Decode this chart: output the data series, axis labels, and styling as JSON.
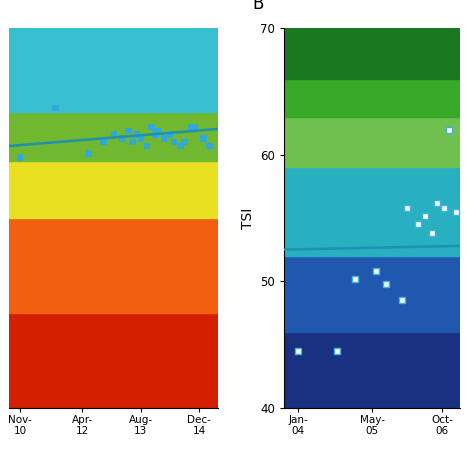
{
  "panel_A": {
    "bg_bands": [
      {
        "ymin": 0,
        "ymax": 25,
        "color": "#d42000"
      },
      {
        "ymin": 25,
        "ymax": 50,
        "color": "#f06010"
      },
      {
        "ymin": 50,
        "ymax": 65,
        "color": "#e8e020"
      },
      {
        "ymin": 65,
        "ymax": 78,
        "color": "#70b830"
      },
      {
        "ymin": 78,
        "ymax": 100,
        "color": "#38c0d0"
      }
    ],
    "scatter_x": [
      0.05,
      0.22,
      0.38,
      0.45,
      0.5,
      0.54,
      0.57,
      0.59,
      0.61,
      0.63,
      0.66,
      0.68,
      0.7,
      0.71,
      0.74,
      0.77,
      0.79,
      0.82,
      0.84,
      0.87,
      0.89,
      0.93,
      0.96
    ],
    "scatter_y": [
      66,
      79,
      67,
      70,
      72,
      71,
      73,
      70,
      72,
      71,
      69,
      74,
      72,
      73,
      71,
      72,
      70,
      69,
      70,
      74,
      74,
      71,
      69
    ],
    "line_x": [
      0.0,
      1.0
    ],
    "line_y": [
      69.0,
      73.5
    ],
    "line_color": "#2090b0",
    "scatter_color": "#30a8d8",
    "xlim": [
      0,
      1
    ],
    "ylim": [
      0,
      100
    ],
    "xticks": [
      0.05,
      0.35,
      0.63,
      0.91
    ],
    "xticklabels": [
      "Nov-\n10",
      "Apr-\n12",
      "Aug-\n13",
      "Dec-\n14"
    ],
    "yticks": [],
    "xlabel": "",
    "ylabel": ""
  },
  "panel_B": {
    "bg_bands": [
      {
        "ymin": 40,
        "ymax": 46,
        "color": "#1a3080"
      },
      {
        "ymin": 46,
        "ymax": 52,
        "color": "#2058b0"
      },
      {
        "ymin": 52,
        "ymax": 59,
        "color": "#28b0c0"
      },
      {
        "ymin": 59,
        "ymax": 63,
        "color": "#70c050"
      },
      {
        "ymin": 63,
        "ymax": 66,
        "color": "#38a828"
      },
      {
        "ymin": 66,
        "ymax": 70,
        "color": "#1a7820"
      }
    ],
    "scatter_x": [
      0.08,
      0.3,
      0.4,
      0.52,
      0.58,
      0.67,
      0.7,
      0.76,
      0.8,
      0.84,
      0.87,
      0.91,
      0.94,
      0.98
    ],
    "scatter_y": [
      44.5,
      44.5,
      50.2,
      50.8,
      49.8,
      48.5,
      55.8,
      54.5,
      55.2,
      53.8,
      56.2,
      55.8,
      62.0,
      55.5
    ],
    "line_x": [
      0.0,
      1.0
    ],
    "line_y": [
      52.5,
      52.8
    ],
    "line_color": "#2090b0",
    "scatter_color": "#40b0e0",
    "scatter_open": true,
    "xlim": [
      0,
      1
    ],
    "ylim": [
      40,
      70
    ],
    "xticks": [
      0.08,
      0.5,
      0.9
    ],
    "xticklabels": [
      "Jan-\n04",
      "May-\n05",
      "Oct-\n06"
    ],
    "yticks": [
      40,
      50,
      60,
      70
    ],
    "xlabel": "",
    "ylabel": "TSI",
    "label_B": "B"
  }
}
